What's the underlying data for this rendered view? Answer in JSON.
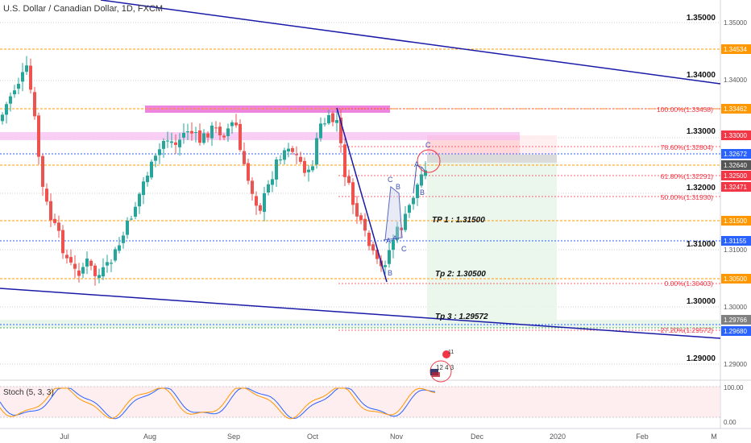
{
  "header": {
    "symbol_title": "U.S. Dollar / Canadian Dollar, 1D, FXCM"
  },
  "axis": {
    "price_ticks": [
      "1.35000",
      "1.34000",
      "1.33000",
      "1.32000",
      "1.31000",
      "1.30000",
      "1.29000"
    ],
    "time_ticks": [
      "Jul",
      "Aug",
      "Sep",
      "Oct",
      "Nov",
      "Dec",
      "2020",
      "Feb",
      "M"
    ],
    "osc_ticks": [
      "100.00",
      "0.00"
    ]
  },
  "price_tags": [
    {
      "label": "1.34534",
      "color": "#ff9800"
    },
    {
      "label": "1.33462",
      "color": "#ff9800"
    },
    {
      "label": "1.33000",
      "color": "#f23645"
    },
    {
      "label": "1.32672",
      "color": "#2962ff"
    },
    {
      "label": "1.32640",
      "color": "#555555"
    },
    {
      "label": "1.32500",
      "color": "#f23645"
    },
    {
      "label": "1.32471",
      "color": "#f23645"
    },
    {
      "label": "1.31500",
      "color": "#ff9800"
    },
    {
      "label": "1.31155",
      "color": "#2962ff"
    },
    {
      "label": "1.30500",
      "color": "#ff9800"
    },
    {
      "label": "1.29766",
      "color": "#808080"
    },
    {
      "label": "1.29680",
      "color": "#2962ff"
    }
  ],
  "fib_labels": [
    "100.00%(1.33458)",
    "78.60%(1.32804)",
    "61.80%(1.32291)",
    "50.00%(1.31930)",
    "0.00%(1.30403)",
    "-27.20%(1.29572)"
  ],
  "annotations": {
    "tp1": "TP 1 : 1.31500",
    "tp2": "Tp 2: 1.30500",
    "tp3": "Tp 3 : 1.29572"
  },
  "wave_labels": [
    "A",
    "B",
    "C",
    "A",
    "B",
    "C",
    "A",
    "B",
    "C"
  ],
  "events": {
    "badge_count": "11",
    "event_numbers": "12 4 3"
  },
  "oscillator": {
    "label": "Stoch (5, 3, 3)"
  },
  "colors": {
    "bull": "#26a69a",
    "bear": "#ef5350",
    "fib": "#f23645",
    "orange": "#ff9800",
    "channel": "#1a1aa8"
  }
}
